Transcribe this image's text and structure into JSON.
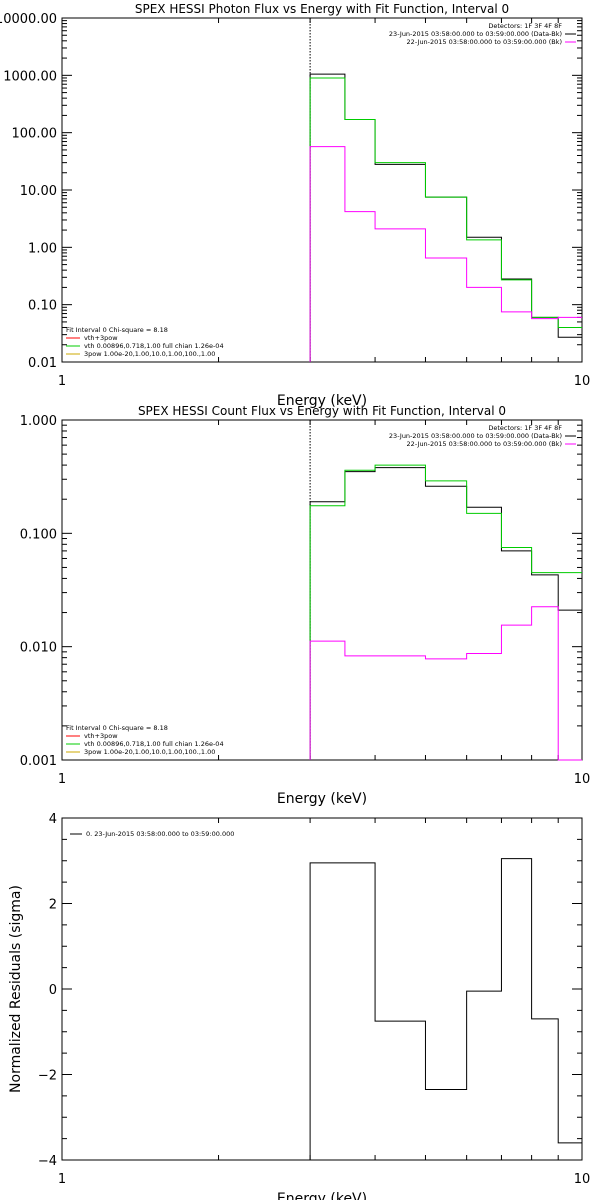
{
  "chart_data": [
    {
      "type": "line",
      "title": "SPEX HESSI Photon Flux vs Energy with Fit Function, Interval 0",
      "xlabel": "Energy (keV)",
      "xscale": "log",
      "yscale": "log",
      "xlim": [
        1,
        10
      ],
      "ylim": [
        0.01,
        10000
      ],
      "xticks": [
        {
          "v": 1,
          "label": "1"
        },
        {
          "v": 10,
          "label": "10"
        }
      ],
      "yticks": [
        {
          "v": 0.01,
          "label": "0.01"
        },
        {
          "v": 0.1,
          "label": "0.10"
        },
        {
          "v": 1,
          "label": "1.00"
        },
        {
          "v": 10,
          "label": "10.00"
        },
        {
          "v": 100,
          "label": "100.00"
        },
        {
          "v": 1000,
          "label": "1000.00"
        },
        {
          "v": 10000,
          "label": "10000.00"
        }
      ],
      "vline": 3,
      "edges": [
        3,
        3.5,
        4,
        5,
        6,
        7,
        8,
        9,
        10
      ],
      "series": [
        {
          "color": "#000000",
          "values": [
            1050,
            170,
            28,
            7.5,
            1.5,
            0.28,
            0.06,
            0.027
          ]
        },
        {
          "color": "#00cc00",
          "values": [
            900,
            170,
            30,
            7.5,
            1.35,
            0.27,
            0.06,
            0.04
          ]
        },
        {
          "color": "#ff00ff",
          "values": [
            57,
            4.2,
            2.1,
            0.65,
            0.2,
            0.075,
            0.057,
            0.06
          ]
        }
      ],
      "legend_top": [
        "Detectors: 1F 3F 4F 8F",
        "23-Jun-2015 03:58:00.000 to 03:59:00.000 (Data-Bk)",
        "22-Jun-2015 03:58:00.000 to 03:59:00.000 (Bk)"
      ],
      "legend_top_colors": [
        "",
        "#000000",
        "#ff00ff"
      ],
      "legend_bottom": [
        "Fit Interval 0   Chi-square = 8.18",
        "vth+3pow",
        "vth 0.00896,0.718,1.00  full chian 1.26e-04",
        "3pow 1.00e-20,1.00,10.0,1.00,100.,1.00"
      ],
      "legend_bottom_colors": [
        "",
        "#ff0000",
        "#00cc00",
        "#ccaa00"
      ]
    },
    {
      "type": "line",
      "title": "SPEX HESSI Count Flux vs Energy with Fit Function, Interval 0",
      "xlabel": "Energy (keV)",
      "xscale": "log",
      "yscale": "log",
      "xlim": [
        1,
        10
      ],
      "ylim": [
        0.001,
        1
      ],
      "xticks": [
        {
          "v": 1,
          "label": "1"
        },
        {
          "v": 10,
          "label": "10"
        }
      ],
      "yticks": [
        {
          "v": 0.001,
          "label": "0.001"
        },
        {
          "v": 0.01,
          "label": "0.010"
        },
        {
          "v": 0.1,
          "label": "0.100"
        },
        {
          "v": 1,
          "label": "1.000"
        }
      ],
      "vline": 3,
      "edges": [
        3,
        3.5,
        4,
        5,
        6,
        7,
        8,
        9,
        10
      ],
      "series": [
        {
          "color": "#000000",
          "values": [
            0.19,
            0.35,
            0.38,
            0.26,
            0.17,
            0.07,
            0.043,
            0.021
          ]
        },
        {
          "color": "#00cc00",
          "values": [
            0.175,
            0.36,
            0.4,
            0.29,
            0.15,
            0.075,
            0.045,
            0.045
          ]
        },
        {
          "color": "#ff00ff",
          "values": [
            0.0112,
            0.0083,
            0.0083,
            0.0078,
            0.0087,
            0.0155,
            0.0225,
            0.001
          ]
        }
      ],
      "legend_top": [
        "Detectors: 1F 3F 4F 8F",
        "23-Jun-2015 03:58:00.000 to 03:59:00.000 (Data-Bk)",
        "22-Jun-2015 03:58:00.000 to 03:59:00.000 (Bk)"
      ],
      "legend_top_colors": [
        "",
        "#000000",
        "#ff00ff"
      ],
      "legend_bottom": [
        "Fit Interval 0   Chi-square = 8.18",
        "vth+3pow",
        "vth 0.00896,0.718,1.00  full chian 1.26e-04",
        "3pow 1.00e-20,1.00,10.0,1.00,100.,1.00"
      ],
      "legend_bottom_colors": [
        "",
        "#ff0000",
        "#00cc00",
        "#ccaa00"
      ]
    },
    {
      "type": "line",
      "title": "",
      "xlabel": "Energy (keV)",
      "ylabel": "Normalized Residuals (sigma)",
      "xscale": "log",
      "yscale": "linear",
      "xlim": [
        1,
        10
      ],
      "ylim": [
        -4,
        4
      ],
      "xticks": [
        {
          "v": 1,
          "label": "1"
        },
        {
          "v": 10,
          "label": "10"
        }
      ],
      "yticks": [
        {
          "v": -4,
          "label": "−4"
        },
        {
          "v": -2,
          "label": "−2"
        },
        {
          "v": 0,
          "label": "0"
        },
        {
          "v": 2,
          "label": "2"
        },
        {
          "v": 4,
          "label": "4"
        }
      ],
      "edges": [
        3,
        3.5,
        4,
        5,
        6,
        7,
        8,
        9,
        10
      ],
      "series": [
        {
          "color": "#000000",
          "values": [
            2.95,
            2.95,
            -0.75,
            -2.35,
            -0.05,
            3.05,
            -0.7,
            -3.6
          ]
        }
      ],
      "legend_top": [
        "0. 23-Jun-2015 03:58:00.000 to 03:59:00.000"
      ],
      "legend_top_colors": [
        "#000000"
      ]
    }
  ]
}
